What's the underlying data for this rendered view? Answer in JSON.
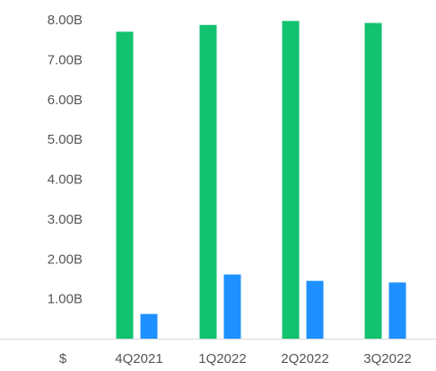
{
  "chart_data": {
    "type": "bar",
    "categories": [
      "4Q2021",
      "1Q2022",
      "2Q2022",
      "3Q2022"
    ],
    "series": [
      {
        "color": "#12c26e",
        "values": [
          7.7,
          7.87,
          7.97,
          7.92
        ]
      },
      {
        "color": "#1e90ff",
        "values": [
          0.62,
          1.61,
          1.45,
          1.41
        ]
      }
    ],
    "y_ticks": [
      {
        "value": 0,
        "label": "$"
      },
      {
        "value": 1,
        "label": "1.00B"
      },
      {
        "value": 2,
        "label": "2.00B"
      },
      {
        "value": 3,
        "label": "3.00B"
      },
      {
        "value": 4,
        "label": "4.00B"
      },
      {
        "value": 5,
        "label": "5.00B"
      },
      {
        "value": 6,
        "label": "6.00B"
      },
      {
        "value": 7,
        "label": "7.00B"
      },
      {
        "value": 8,
        "label": "8.00B"
      }
    ],
    "ylim": [
      0,
      8
    ],
    "y_unit": "billions of dollars",
    "grid": false,
    "legend": "none",
    "baseline_color": "#d9d9d9"
  }
}
